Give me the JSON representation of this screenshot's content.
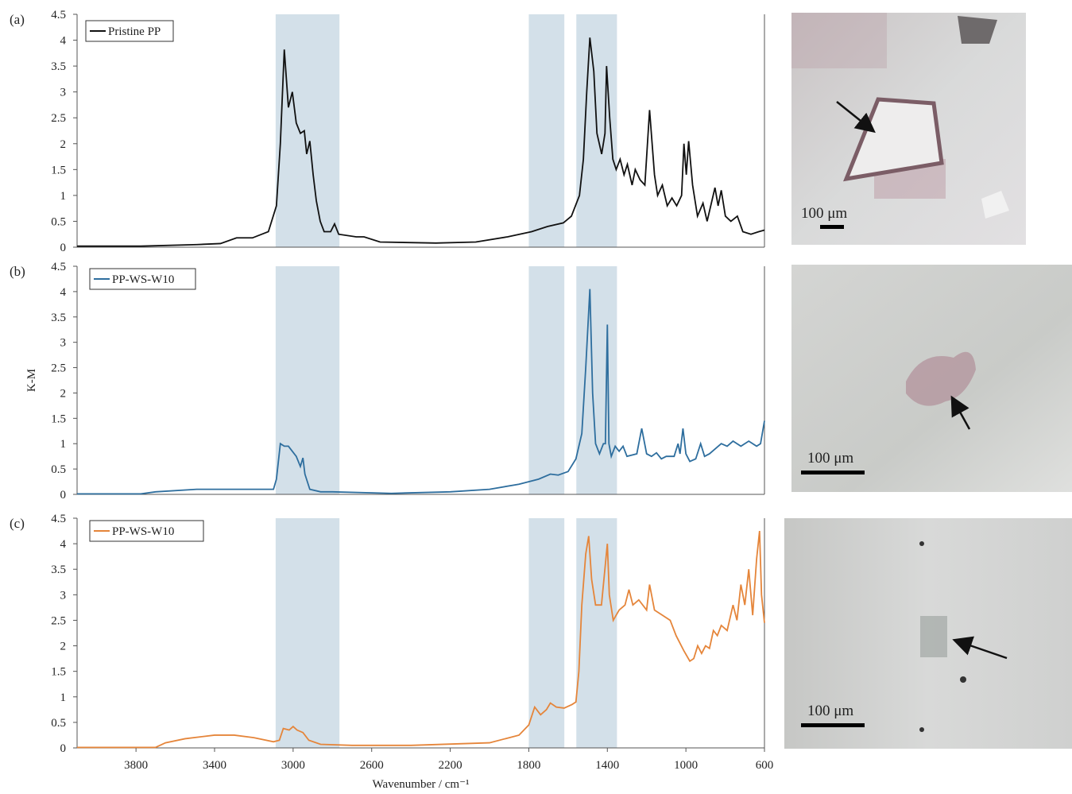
{
  "chart_data": [
    {
      "type": "line",
      "panel_label": "(a)",
      "xlim": [
        4100,
        600
      ],
      "ylim": [
        0,
        4.5
      ],
      "yticks": [
        0,
        0.5,
        1,
        1.5,
        2,
        2.5,
        3,
        3.5,
        4,
        4.5
      ],
      "shaded_ranges": [
        [
          3089,
          2764
        ],
        [
          1800,
          1619
        ],
        [
          1558,
          1351
        ]
      ],
      "x": [
        4100,
        3776,
        3491,
        3370,
        3288,
        3207,
        3126,
        3085,
        3065,
        3045,
        3024,
        3004,
        2984,
        2963,
        2943,
        2931,
        2915,
        2898,
        2882,
        2862,
        2842,
        2809,
        2789,
        2768,
        2679,
        2639,
        2557,
        2273,
        2070,
        1908,
        1786,
        1705,
        1624,
        1583,
        1542,
        1522,
        1505,
        1489,
        1469,
        1453,
        1429,
        1412,
        1404,
        1388,
        1372,
        1355,
        1335,
        1315,
        1298,
        1274,
        1258,
        1233,
        1209,
        1185,
        1160,
        1144,
        1120,
        1095,
        1071,
        1047,
        1022,
        1010,
        998,
        986,
        966,
        941,
        913,
        892,
        852,
        836,
        820,
        799,
        771,
        738,
        710,
        669,
        629,
        600
      ],
      "series": [
        {
          "name": "Pristine PP",
          "color": "#111111",
          "values": [
            0.02,
            0.02,
            0.05,
            0.07,
            0.18,
            0.18,
            0.3,
            0.8,
            2.0,
            3.82,
            2.7,
            3.0,
            2.4,
            2.2,
            2.25,
            1.8,
            2.05,
            1.4,
            0.9,
            0.5,
            0.3,
            0.3,
            0.45,
            0.25,
            0.2,
            0.2,
            0.1,
            0.08,
            0.1,
            0.2,
            0.3,
            0.4,
            0.47,
            0.6,
            1.0,
            1.7,
            3.0,
            4.05,
            3.4,
            2.2,
            1.8,
            2.2,
            3.5,
            2.5,
            1.7,
            1.5,
            1.7,
            1.4,
            1.6,
            1.2,
            1.5,
            1.3,
            1.2,
            2.65,
            1.4,
            1.0,
            1.2,
            0.8,
            0.95,
            0.8,
            1.0,
            2.0,
            1.4,
            2.05,
            1.2,
            0.6,
            0.85,
            0.5,
            1.15,
            0.8,
            1.1,
            0.6,
            0.5,
            0.6,
            0.3,
            0.25,
            0.3,
            0.33
          ]
        }
      ]
    },
    {
      "type": "line",
      "panel_label": "(b)",
      "ylabel": "K-M",
      "xlim": [
        4100,
        600
      ],
      "ylim": [
        0,
        4.5
      ],
      "yticks": [
        0,
        0.5,
        1,
        1.5,
        2,
        2.5,
        3,
        3.5,
        4,
        4.5
      ],
      "shaded_ranges": [
        [
          3089,
          2764
        ],
        [
          1800,
          1619
        ],
        [
          1558,
          1351
        ]
      ],
      "x": [
        4100,
        3776,
        3700,
        3491,
        3200,
        3100,
        3085,
        3065,
        3045,
        3024,
        3004,
        2984,
        2963,
        2950,
        2940,
        2915,
        2860,
        2800,
        2500,
        2200,
        2000,
        1850,
        1750,
        1690,
        1650,
        1600,
        1560,
        1530,
        1510,
        1489,
        1475,
        1460,
        1440,
        1420,
        1410,
        1400,
        1392,
        1380,
        1360,
        1340,
        1320,
        1300,
        1250,
        1225,
        1200,
        1175,
        1150,
        1125,
        1100,
        1060,
        1040,
        1030,
        1015,
        1000,
        980,
        950,
        925,
        905,
        880,
        850,
        820,
        790,
        760,
        720,
        680,
        640,
        620,
        600
      ],
      "series": [
        {
          "name": "PP-WS-W10",
          "color": "#2e6e9e",
          "values": [
            0.01,
            0.01,
            0.05,
            0.1,
            0.1,
            0.1,
            0.3,
            1.0,
            0.95,
            0.95,
            0.85,
            0.75,
            0.55,
            0.72,
            0.4,
            0.1,
            0.05,
            0.05,
            0.02,
            0.05,
            0.1,
            0.2,
            0.3,
            0.4,
            0.38,
            0.45,
            0.7,
            1.2,
            2.5,
            4.05,
            2.0,
            1.0,
            0.8,
            1.0,
            1.0,
            3.35,
            1.0,
            0.75,
            0.95,
            0.85,
            0.95,
            0.75,
            0.8,
            1.3,
            0.8,
            0.75,
            0.82,
            0.7,
            0.75,
            0.75,
            1.0,
            0.8,
            1.3,
            0.8,
            0.65,
            0.7,
            1.0,
            0.75,
            0.8,
            0.9,
            1.0,
            0.95,
            1.05,
            0.95,
            1.05,
            0.95,
            1.0,
            1.45
          ]
        }
      ]
    },
    {
      "type": "line",
      "panel_label": "(c)",
      "xlabel": "Wavenumber / cm⁻¹",
      "xlim": [
        4100,
        600
      ],
      "xticks": [
        3800,
        3400,
        3000,
        2600,
        2200,
        1800,
        1400,
        1000,
        600
      ],
      "ylim": [
        0,
        4.5
      ],
      "yticks": [
        0,
        0.5,
        1,
        1.5,
        2,
        2.5,
        3,
        3.5,
        4,
        4.5
      ],
      "shaded_ranges": [
        [
          3089,
          2764
        ],
        [
          1800,
          1619
        ],
        [
          1558,
          1351
        ]
      ],
      "x": [
        4100,
        3700,
        3650,
        3550,
        3400,
        3300,
        3200,
        3100,
        3070,
        3050,
        3020,
        3000,
        2980,
        2950,
        2920,
        2860,
        2700,
        2400,
        2000,
        1850,
        1800,
        1770,
        1740,
        1710,
        1690,
        1660,
        1620,
        1580,
        1560,
        1545,
        1530,
        1510,
        1495,
        1480,
        1460,
        1430,
        1410,
        1400,
        1390,
        1370,
        1340,
        1310,
        1290,
        1270,
        1240,
        1200,
        1185,
        1160,
        1120,
        1080,
        1050,
        1010,
        980,
        960,
        940,
        920,
        900,
        880,
        860,
        840,
        820,
        790,
        760,
        740,
        720,
        700,
        680,
        660,
        640,
        625,
        615,
        600
      ],
      "series": [
        {
          "name": "PP-WS-W10",
          "color": "#e5853a",
          "values": [
            0.01,
            0.01,
            0.1,
            0.18,
            0.25,
            0.25,
            0.2,
            0.12,
            0.15,
            0.38,
            0.35,
            0.42,
            0.35,
            0.3,
            0.15,
            0.07,
            0.05,
            0.05,
            0.1,
            0.25,
            0.45,
            0.8,
            0.65,
            0.75,
            0.88,
            0.8,
            0.78,
            0.85,
            0.9,
            1.5,
            2.8,
            3.8,
            4.15,
            3.3,
            2.8,
            2.8,
            3.6,
            4.0,
            3.0,
            2.5,
            2.7,
            2.8,
            3.1,
            2.8,
            2.9,
            2.7,
            3.2,
            2.7,
            2.6,
            2.5,
            2.2,
            1.9,
            1.7,
            1.75,
            2.0,
            1.85,
            2.0,
            1.95,
            2.3,
            2.2,
            2.4,
            2.3,
            2.8,
            2.5,
            3.2,
            2.8,
            3.5,
            2.6,
            3.7,
            4.25,
            3.0,
            2.45
          ]
        }
      ]
    }
  ],
  "micrographs": [
    {
      "scale_bar": "100 μm"
    },
    {
      "scale_bar": "100 μm"
    },
    {
      "scale_bar": "100 μm"
    }
  ]
}
